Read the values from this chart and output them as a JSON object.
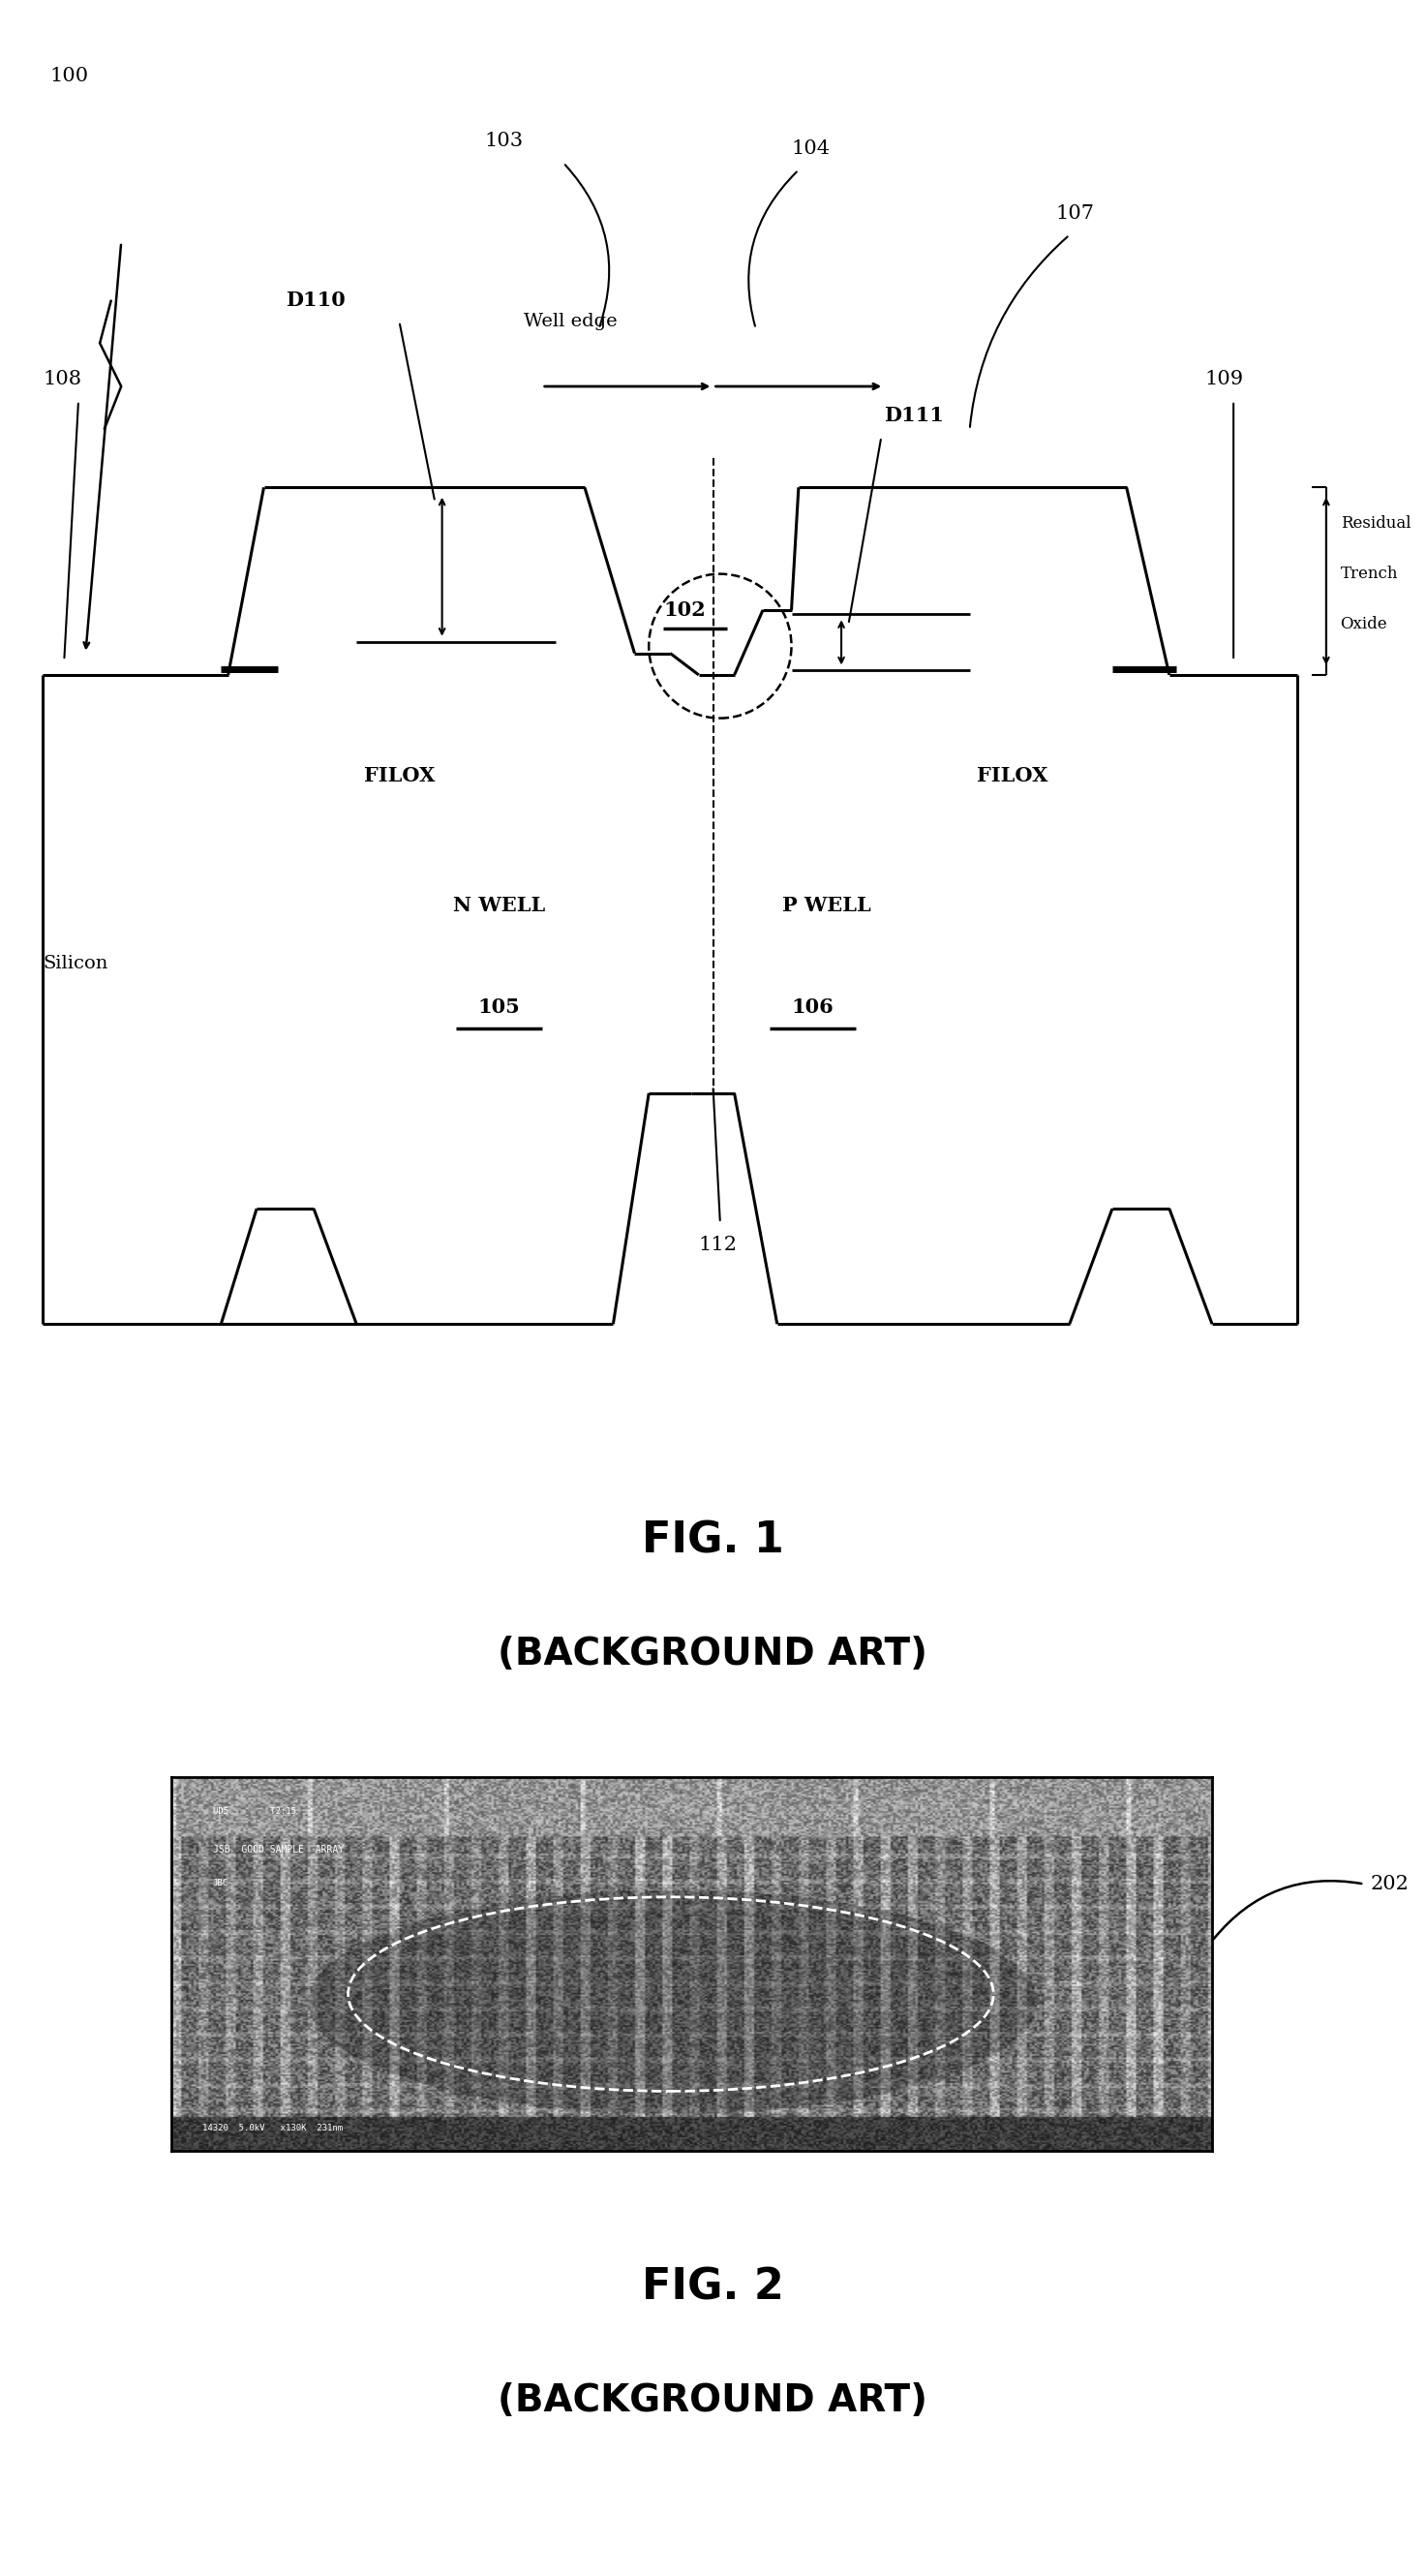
{
  "fig1_title": "FIG. 1",
  "fig1_subtitle": "(BACKGROUND ART)",
  "fig2_title": "FIG. 2",
  "fig2_subtitle": "(BACKGROUND ART)",
  "bg_color": "#ffffff",
  "line_color": "#000000",
  "fig1_label_100": "100",
  "fig1_label_103": "103",
  "fig1_label_104": "104",
  "fig1_label_107": "107",
  "fig1_label_108": "108",
  "fig1_label_109": "109",
  "fig1_label_D110": "D110",
  "fig1_label_D111": "D111",
  "fig1_label_102": "102",
  "fig1_label_FILOX": "FILOX",
  "fig1_label_NWELL": "N WELL",
  "fig1_label_PWELL": "P WELL",
  "fig1_label_105": "105",
  "fig1_label_106": "106",
  "fig1_label_Silicon": "Silicon",
  "fig1_label_112": "112",
  "fig1_label_welledge": "Well edge",
  "fig1_label_residual": "Residual",
  "fig1_label_trench": "Trench",
  "fig1_label_oxide": "Oxide",
  "fig2_label_202": "202"
}
